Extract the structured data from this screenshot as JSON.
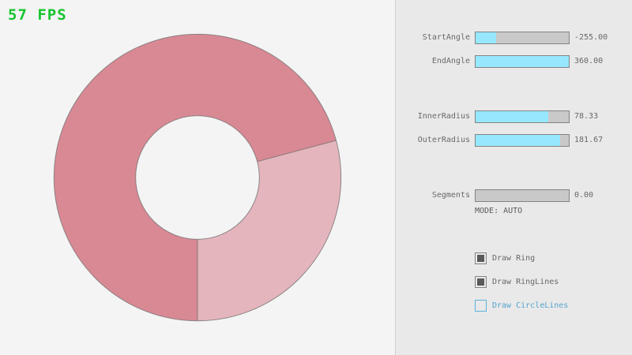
{
  "fps": {
    "label": "57 FPS",
    "color": "#17c42e"
  },
  "panel": {
    "sliders": [
      {
        "label": "StartAngle",
        "value": "-255.00",
        "fraction": 0.22
      },
      {
        "label": "EndAngle",
        "value": "360.00",
        "fraction": 1.0
      },
      {
        "label": "InnerRadius",
        "value": "78.33",
        "fraction": 0.78
      },
      {
        "label": "OuterRadius",
        "value": "181.67",
        "fraction": 0.91
      },
      {
        "label": "Segments",
        "value": "0.00",
        "fraction": 0.0
      }
    ],
    "mode_text": "MODE: AUTO",
    "checkboxes": [
      {
        "label": "Draw Ring",
        "checked": true,
        "highlighted": false
      },
      {
        "label": "Draw RingLines",
        "checked": true,
        "highlighted": false
      },
      {
        "label": "Draw CircleLines",
        "checked": false,
        "highlighted": true
      }
    ]
  },
  "chart_data": {
    "type": "ring",
    "title": "",
    "center": [
      250,
      225
    ],
    "inner_radius": 78.33,
    "outer_radius": 181.67,
    "start_angle": -255,
    "end_angle": 360,
    "segments_mode": "AUTO",
    "fill_once_color": "#e4b5bc",
    "fill_overlap_color": "#d98994",
    "line_color": "#6e6e6e",
    "background": "#f4f4f4"
  }
}
